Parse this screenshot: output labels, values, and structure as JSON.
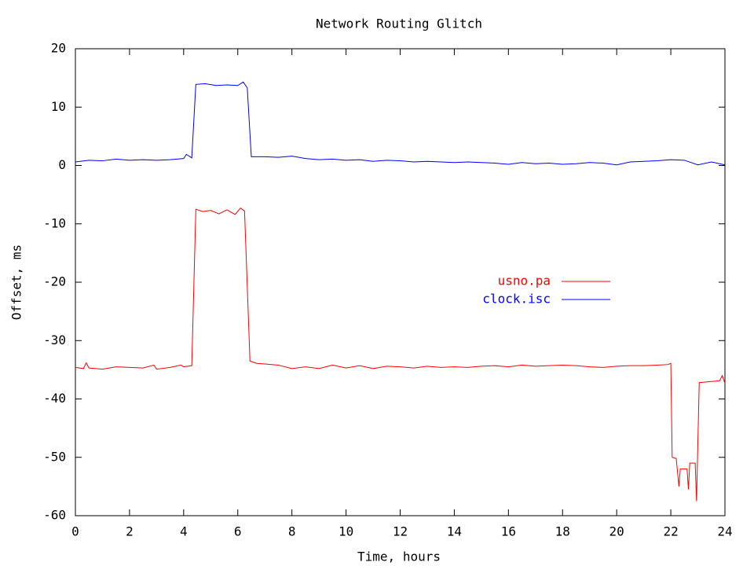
{
  "chart_data": {
    "type": "line",
    "title": "Network Routing Glitch",
    "xlabel": "Time, hours",
    "ylabel": "Offset, ms",
    "xlim": [
      0,
      24
    ],
    "xticks": [
      0,
      2,
      4,
      6,
      8,
      10,
      12,
      14,
      16,
      18,
      20,
      22,
      24
    ],
    "ylim": [
      -60,
      20
    ],
    "yticks": [
      -60,
      -50,
      -40,
      -30,
      -20,
      -10,
      0,
      10,
      20
    ],
    "grid": false,
    "legend": "right-middle",
    "series": [
      {
        "name": "usno.pa",
        "color": "#ff0000",
        "x": [
          0,
          0.3,
          0.4,
          0.5,
          1,
          1.5,
          2,
          2.5,
          2.9,
          3,
          3.5,
          3.9,
          4,
          4.3,
          4.45,
          4.7,
          5,
          5.3,
          5.6,
          5.9,
          6.1,
          6.25,
          6.45,
          6.7,
          7,
          7.5,
          8,
          8.5,
          9,
          9.5,
          10,
          10.5,
          11,
          11.5,
          12,
          12.5,
          13,
          13.5,
          14,
          14.5,
          15,
          15.5,
          16,
          16.5,
          17,
          17.5,
          18,
          18.5,
          19,
          19.5,
          20,
          20.5,
          21,
          21.5,
          21.9,
          22,
          22.05,
          22.2,
          22.3,
          22.35,
          22.6,
          22.65,
          22.7,
          22.9,
          22.95,
          23.05,
          23.5,
          23.8,
          23.9,
          24
        ],
        "values": [
          -34.6,
          -34.8,
          -33.8,
          -34.7,
          -34.9,
          -34.5,
          -34.6,
          -34.7,
          -34.2,
          -34.9,
          -34.6,
          -34.2,
          -34.5,
          -34.3,
          -7.5,
          -7.9,
          -7.7,
          -8.3,
          -7.6,
          -8.4,
          -7.3,
          -7.8,
          -33.5,
          -33.9,
          -34,
          -34.2,
          -34.8,
          -34.5,
          -34.8,
          -34.2,
          -34.7,
          -34.3,
          -34.8,
          -34.4,
          -34.5,
          -34.7,
          -34.4,
          -34.6,
          -34.5,
          -34.6,
          -34.4,
          -34.3,
          -34.5,
          -34.2,
          -34.4,
          -34.3,
          -34.2,
          -34.3,
          -34.5,
          -34.6,
          -34.4,
          -34.3,
          -34.3,
          -34.2,
          -34.1,
          -33.9,
          -50,
          -50.2,
          -55,
          -52,
          -52,
          -55.5,
          -51,
          -51,
          -57.5,
          -37.2,
          -37,
          -36.9,
          -36,
          -37.3
        ]
      },
      {
        "name": "clock.isc",
        "color": "#0000ff",
        "x": [
          0,
          0.5,
          1,
          1.5,
          2,
          2.5,
          3,
          3.5,
          4,
          4.1,
          4.3,
          4.45,
          4.8,
          5.2,
          5.6,
          6,
          6.2,
          6.35,
          6.5,
          7,
          7.5,
          8,
          8.5,
          9,
          9.5,
          10,
          10.5,
          11,
          11.5,
          12,
          12.5,
          13,
          13.5,
          14,
          14.5,
          15,
          15.5,
          16,
          16.5,
          17,
          17.5,
          18,
          18.5,
          19,
          19.5,
          20,
          20.5,
          21,
          21.5,
          22,
          22.5,
          23,
          23.5,
          24
        ],
        "values": [
          0.6,
          0.9,
          0.8,
          1.1,
          0.9,
          1.0,
          0.9,
          1.0,
          1.2,
          1.9,
          1.3,
          13.9,
          14,
          13.7,
          13.8,
          13.7,
          14.3,
          13.3,
          1.5,
          1.5,
          1.4,
          1.6,
          1.2,
          1.0,
          1.1,
          0.9,
          1.0,
          0.7,
          0.9,
          0.8,
          0.6,
          0.7,
          0.6,
          0.5,
          0.6,
          0.5,
          0.4,
          0.2,
          0.5,
          0.3,
          0.4,
          0.2,
          0.3,
          0.5,
          0.4,
          0.1,
          0.6,
          0.7,
          0.8,
          1.0,
          0.9,
          0.1,
          0.6,
          0.1
        ]
      }
    ]
  }
}
